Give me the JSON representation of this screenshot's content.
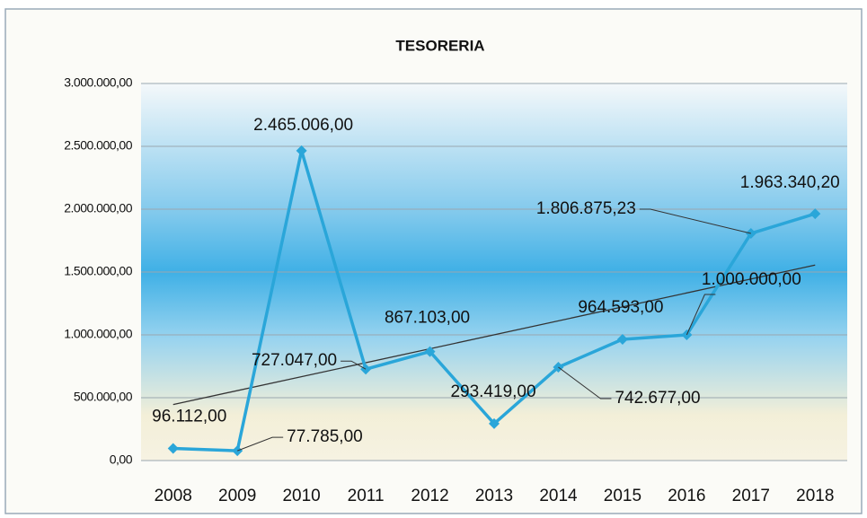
{
  "chart_data": {
    "type": "line",
    "title": "TESORERIA",
    "categories": [
      "2008",
      "2009",
      "2010",
      "2011",
      "2012",
      "2013",
      "2014",
      "2015",
      "2016",
      "2017",
      "2018"
    ],
    "series": [
      {
        "name": "TESORERIA",
        "color": "#2aa6d9",
        "values": [
          96112,
          77785,
          2465006,
          727047,
          867103,
          293419,
          742677,
          964593,
          1000000,
          1806875.23,
          1963340.2
        ],
        "value_labels": [
          "96.112,00",
          "77.785,00",
          "2.465.006,00",
          "727.047,00",
          "867.103,00",
          "293.419,00",
          "742.677,00",
          "964.593,00",
          "1.000.000,00",
          "1.806.875,23",
          "1.963.340,20"
        ]
      }
    ],
    "ylim": [
      0,
      3000000
    ],
    "yticks": [
      {
        "value": 0,
        "label": "0,00"
      },
      {
        "value": 500000,
        "label": "500.000,00"
      },
      {
        "value": 1000000,
        "label": "1.000.000,00"
      },
      {
        "value": 1500000,
        "label": "1.500.000,00"
      },
      {
        "value": 2000000,
        "label": "2.000.000,00"
      },
      {
        "value": 2500000,
        "label": "2.500.000,00"
      },
      {
        "value": 3000000,
        "label": "3.000.000,00"
      }
    ],
    "grid": true,
    "trendline": true,
    "trendline_color": "#333333"
  }
}
